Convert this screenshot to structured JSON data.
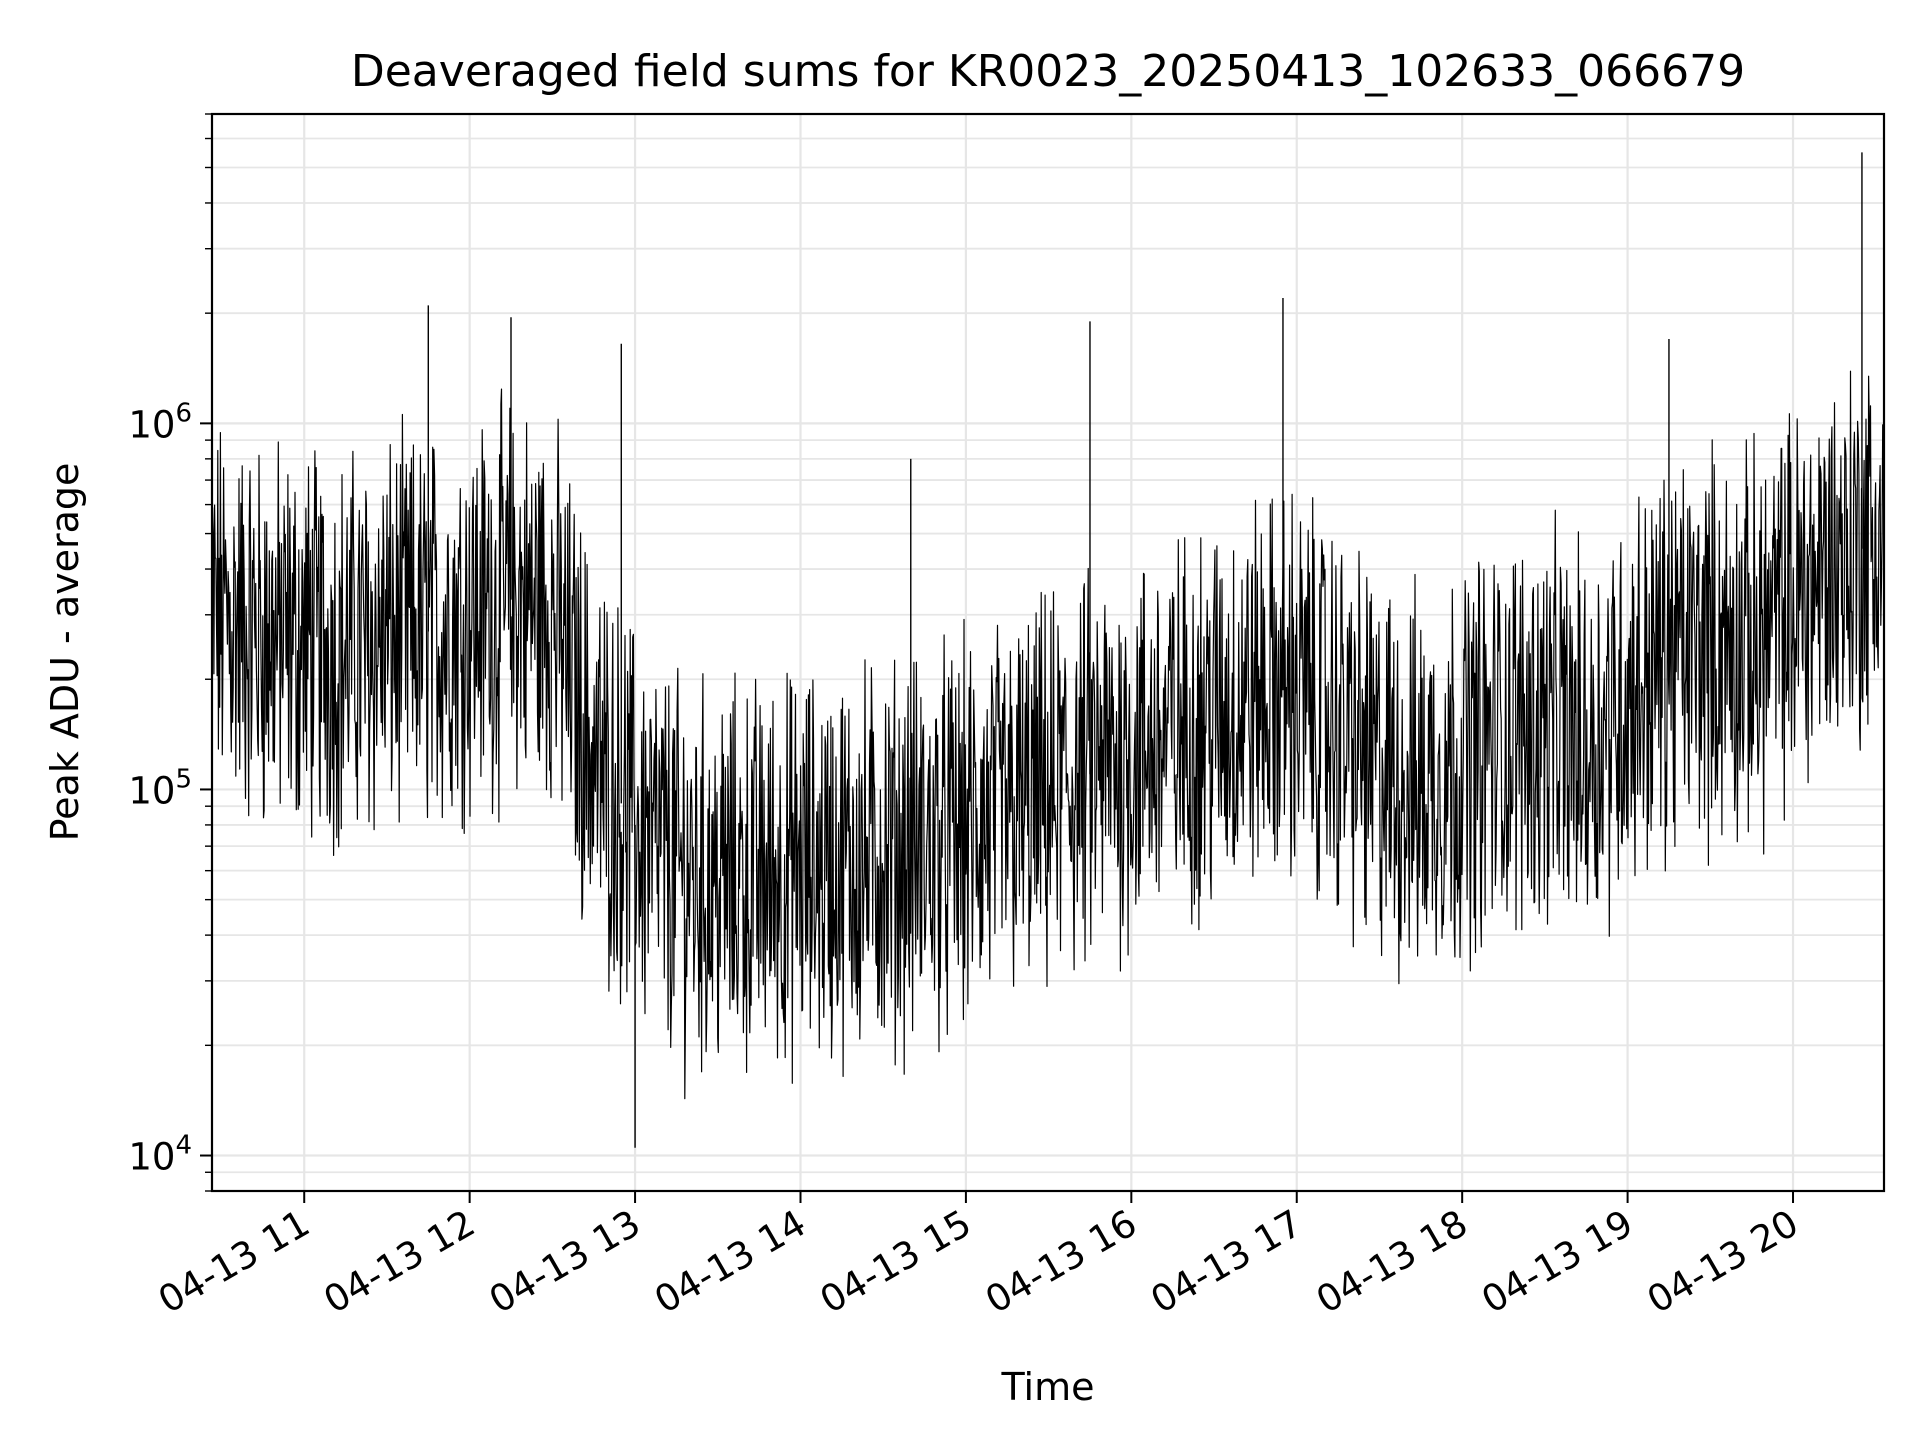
{
  "chart_data": {
    "type": "line",
    "title": "Deaveraged field sums for KR0023_20250413_102633_066679",
    "xlabel": "Time",
    "ylabel": "Peak ADU - average",
    "x_range": [
      "2025-04-13T10:26:33",
      "2025-04-13T20:33:00"
    ],
    "x_ticks": [
      {
        "label": "04-13 11",
        "time": "2025-04-13T11:00:00"
      },
      {
        "label": "04-13 12",
        "time": "2025-04-13T12:00:00"
      },
      {
        "label": "04-13 13",
        "time": "2025-04-13T13:00:00"
      },
      {
        "label": "04-13 14",
        "time": "2025-04-13T14:00:00"
      },
      {
        "label": "04-13 15",
        "time": "2025-04-13T15:00:00"
      },
      {
        "label": "04-13 16",
        "time": "2025-04-13T16:00:00"
      },
      {
        "label": "04-13 17",
        "time": "2025-04-13T17:00:00"
      },
      {
        "label": "04-13 18",
        "time": "2025-04-13T18:00:00"
      },
      {
        "label": "04-13 19",
        "time": "2025-04-13T19:00:00"
      },
      {
        "label": "04-13 20",
        "time": "2025-04-13T20:00:00"
      }
    ],
    "y_scale": "log",
    "ylim": [
      8000,
      7000000
    ],
    "y_ticks": [
      {
        "base": "10",
        "exp": "4",
        "value": 10000
      },
      {
        "base": "10",
        "exp": "5",
        "value": 100000
      },
      {
        "base": "10",
        "exp": "6",
        "value": 1000000
      }
    ],
    "grid": true,
    "line_color": "#000000",
    "grid_color": "#e6e6e6",
    "series": [
      {
        "x": [
          "2025-04-13T10:27:00",
          "2025-04-13T10:45:00",
          "2025-04-13T11:00:00",
          "2025-04-13T11:15:00",
          "2025-04-13T11:30:00",
          "2025-04-13T11:45:00",
          "2025-04-13T12:00:00",
          "2025-04-13T12:15:00",
          "2025-04-13T12:30:00",
          "2025-04-13T12:45:00",
          "2025-04-13T13:00:00",
          "2025-04-13T13:15:00",
          "2025-04-13T13:30:00",
          "2025-04-13T13:45:00",
          "2025-04-13T14:00:00",
          "2025-04-13T14:15:00",
          "2025-04-13T14:30:00",
          "2025-04-13T14:45:00",
          "2025-04-13T15:00:00",
          "2025-04-13T15:15:00",
          "2025-04-13T15:30:00",
          "2025-04-13T15:45:00",
          "2025-04-13T16:00:00",
          "2025-04-13T16:15:00",
          "2025-04-13T16:30:00",
          "2025-04-13T16:45:00",
          "2025-04-13T17:00:00",
          "2025-04-13T17:15:00",
          "2025-04-13T17:30:00",
          "2025-04-13T17:45:00",
          "2025-04-13T18:00:00",
          "2025-04-13T18:15:00",
          "2025-04-13T18:30:00",
          "2025-04-13T18:45:00",
          "2025-04-13T19:00:00",
          "2025-04-13T19:15:00",
          "2025-04-13T19:30:00",
          "2025-04-13T19:45:00",
          "2025-04-13T20:00:00",
          "2025-04-13T20:15:00",
          "2025-04-13T20:32:00"
        ],
        "values": [
          300000,
          260000,
          250000,
          240000,
          260000,
          270000,
          300000,
          330000,
          310000,
          120000,
          80000,
          60000,
          55000,
          58000,
          60000,
          62000,
          65000,
          68000,
          75000,
          85000,
          95000,
          110000,
          125000,
          140000,
          160000,
          180000,
          190000,
          150000,
          110000,
          100000,
          120000,
          140000,
          150000,
          130000,
          180000,
          230000,
          250000,
          240000,
          320000,
          420000,
          480000
        ],
        "spikes": [
          {
            "x": "2025-04-13T11:45:00",
            "y": 2100000
          },
          {
            "x": "2025-04-13T12:15:00",
            "y": 1950000
          },
          {
            "x": "2025-04-13T12:55:00",
            "y": 1650000
          },
          {
            "x": "2025-04-13T13:00:00",
            "y": 10500
          },
          {
            "x": "2025-04-13T14:40:00",
            "y": 800000
          },
          {
            "x": "2025-04-13T15:45:00",
            "y": 1900000
          },
          {
            "x": "2025-04-13T16:55:00",
            "y": 2200000
          },
          {
            "x": "2025-04-13T19:15:00",
            "y": 1700000
          },
          {
            "x": "2025-04-13T20:25:00",
            "y": 5500000
          }
        ]
      }
    ]
  }
}
